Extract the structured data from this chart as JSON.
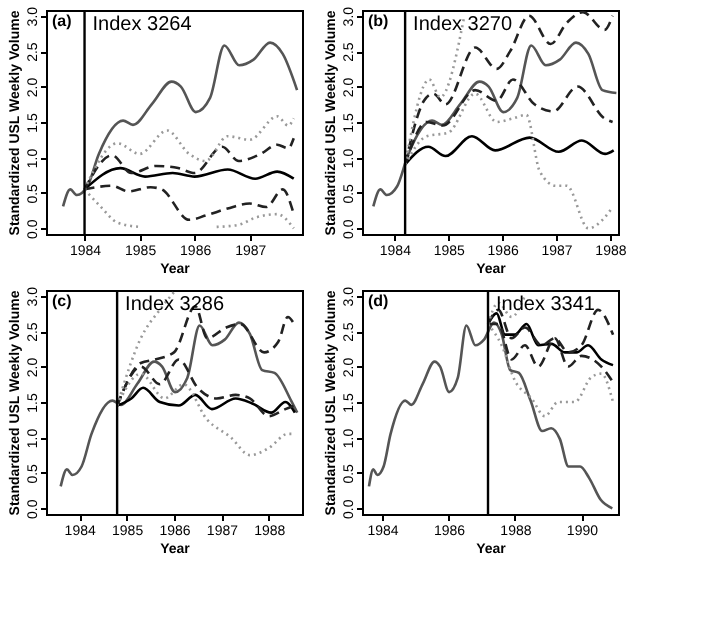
{
  "chart_data": [
    {
      "type": "line",
      "xlabel": "Year",
      "ylabel": "Standardized USL Weekly Volume",
      "annotations": [
        "(a)",
        "Index 3264"
      ],
      "xlim": [
        1983.3,
        1987.95
      ],
      "xticks": [
        1984,
        1985,
        1986,
        1987
      ],
      "ylim": [
        -0.08,
        3.08
      ],
      "yticks": [
        {
          "value": 0,
          "label": "0.0"
        },
        0.5,
        {
          "value": 1,
          "label": "1.0"
        },
        1.5,
        {
          "value": 2,
          "label": "2.0"
        },
        2.5,
        {
          "value": 3,
          "label": "3.0"
        }
      ],
      "grid": false,
      "marker": "none",
      "ref_lines": [
        {
          "axis": "x",
          "value": 1984.0
        }
      ],
      "series": [
        {
          "color": "#555555",
          "line_style": "solid",
          "x": [
            1983.61,
            1983.74,
            1983.86,
            1984.05,
            1984.26,
            1984.7,
            1984.88,
            1985.23,
            1985.58,
            1985.75,
            1986.02,
            1986.28,
            1986.54,
            1986.81,
            1987.07,
            1987.37,
            1987.6,
            1987.86
          ],
          "values": [
            0.31,
            0.55,
            0.47,
            0.59,
            1.05,
            1.52,
            1.46,
            1.76,
            2.07,
            2.0,
            1.64,
            1.84,
            2.58,
            2.3,
            2.38,
            2.62,
            2.46,
            1.95
          ]
        },
        {
          "color": "#000000",
          "line_style": "solid",
          "x": [
            1984.0,
            1984.65,
            1985.1,
            1985.6,
            1986.0,
            1986.6,
            1987.1,
            1987.5,
            1987.8
          ],
          "values": [
            0.55,
            0.85,
            0.73,
            0.78,
            0.73,
            0.83,
            0.7,
            0.8,
            0.7
          ]
        },
        {
          "color": "#222222",
          "line_style": "dashed",
          "x": [
            1984.0,
            1984.5,
            1984.85,
            1985.3,
            1985.7,
            1986.0,
            1986.5,
            1986.8,
            1987.2,
            1987.5,
            1987.7,
            1987.8
          ],
          "values": [
            0.55,
            1.03,
            0.78,
            0.88,
            0.85,
            0.78,
            1.15,
            0.95,
            1.05,
            1.18,
            1.13,
            1.27
          ]
        },
        {
          "color": "#222222",
          "line_style": "dashed",
          "x": [
            1984.0,
            1984.5,
            1984.8,
            1985.2,
            1985.4,
            1985.9,
            1986.2,
            1986.6,
            1987.0,
            1987.3,
            1987.6,
            1987.8
          ],
          "values": [
            0.55,
            0.6,
            0.52,
            0.58,
            0.55,
            0.12,
            0.18,
            0.28,
            0.35,
            0.3,
            0.55,
            0.2
          ]
        },
        {
          "color": "#999999",
          "line_style": "dotted",
          "x": [
            1984.0,
            1984.6,
            1985.0,
            1985.5,
            1985.9,
            1986.2,
            1986.6,
            1987.0,
            1987.5,
            1987.7,
            1987.8
          ],
          "values": [
            0.55,
            1.2,
            1.05,
            1.38,
            1.05,
            0.95,
            1.3,
            1.25,
            1.58,
            1.45,
            1.55
          ]
        },
        {
          "color": "#999999",
          "line_style": "dotted",
          "x": [
            1984.0,
            1984.3,
            1984.6,
            1985.0,
            1985.5,
            1986.4,
            1986.8,
            1987.1,
            1987.5,
            1987.8
          ],
          "values": [
            0.55,
            0.3,
            0.08,
            0.02,
            null,
            0.02,
            0.05,
            0.15,
            0.2,
            0.0
          ]
        }
      ]
    },
    {
      "type": "line",
      "xlabel": "Year",
      "ylabel": "Standardized USL Weekly Volume",
      "annotations": [
        "(b)",
        "Index 3270"
      ],
      "xlim": [
        1983.4,
        1988.15
      ],
      "xticks": [
        1984,
        1985,
        1986,
        1987,
        1988
      ],
      "ylim": [
        -0.08,
        3.08
      ],
      "yticks": [
        {
          "value": 0,
          "label": "0.0"
        },
        0.5,
        {
          "value": 1,
          "label": "1.0"
        },
        1.5,
        {
          "value": 2,
          "label": "2.0"
        },
        2.5,
        {
          "value": 3,
          "label": "3.0"
        }
      ],
      "grid": false,
      "marker": "none",
      "ref_lines": [
        {
          "axis": "x",
          "value": 1984.2
        }
      ],
      "series": [
        {
          "color": "#555555",
          "line_style": "solid",
          "x": [
            1983.61,
            1983.74,
            1983.86,
            1984.05,
            1984.26,
            1984.7,
            1984.88,
            1985.23,
            1985.58,
            1985.75,
            1986.02,
            1986.28,
            1986.54,
            1986.81,
            1987.07,
            1987.37,
            1987.6,
            1987.86,
            1988.12
          ],
          "values": [
            0.31,
            0.55,
            0.47,
            0.59,
            1.05,
            1.52,
            1.46,
            1.76,
            2.07,
            2.0,
            1.64,
            1.84,
            2.58,
            2.3,
            2.38,
            2.62,
            2.46,
            1.95,
            1.91
          ]
        },
        {
          "color": "#000000",
          "line_style": "solid",
          "x": [
            1984.2,
            1984.63,
            1984.95,
            1985.44,
            1985.87,
            1986.51,
            1987.05,
            1987.48,
            1987.91,
            1988.07
          ],
          "values": [
            0.9,
            1.15,
            1.02,
            1.3,
            1.1,
            1.28,
            1.08,
            1.24,
            1.05,
            1.1
          ]
        },
        {
          "color": "#222222",
          "line_style": "dashed",
          "x": [
            1984.2,
            1984.55,
            1984.72,
            1984.95,
            1985.5,
            1985.9,
            1986.15,
            1986.5,
            1986.9,
            1987.2,
            1987.5,
            1987.9,
            1988.05
          ],
          "values": [
            0.9,
            1.8,
            1.9,
            1.75,
            2.55,
            2.25,
            2.5,
            3.0,
            2.6,
            2.9,
            3.05,
            2.8,
            3.0
          ]
        },
        {
          "color": "#222222",
          "line_style": "dashed",
          "x": [
            1984.2,
            1984.6,
            1984.9,
            1985.5,
            1985.9,
            1986.2,
            1986.6,
            1986.95,
            1987.4,
            1987.9,
            1988.05
          ],
          "values": [
            0.9,
            1.5,
            1.45,
            1.95,
            1.8,
            2.1,
            1.75,
            1.65,
            2.0,
            1.55,
            1.5
          ]
        },
        {
          "color": "#999999",
          "line_style": "dotted",
          "x": [
            1984.2,
            1984.65,
            1984.85,
            1985.3
          ],
          "values": [
            0.9,
            2.1,
            1.85,
            3.0
          ]
        },
        {
          "color": "#999999",
          "line_style": "dotted",
          "x": [
            1984.2,
            1984.6,
            1985.0,
            1985.5,
            1985.9,
            1986.2,
            1986.45,
            1986.7,
            1987.0,
            1987.2,
            1987.6,
            1987.9,
            1988.05
          ],
          "values": [
            0.9,
            1.3,
            1.35,
            1.9,
            1.5,
            1.55,
            1.6,
            0.8,
            0.6,
            0.6,
            0.0,
            0.15,
            0.3
          ]
        }
      ]
    },
    {
      "type": "line",
      "xlabel": "Year",
      "ylabel": "Standardized USL Weekly Volume",
      "annotations": [
        "(c)",
        "Index 3286"
      ],
      "xlim": [
        1983.3,
        1988.7
      ],
      "xticks": [
        1984,
        1985,
        1986,
        1987,
        1988
      ],
      "ylim": [
        -0.08,
        3.08
      ],
      "yticks": [
        {
          "value": 0,
          "label": "0.0"
        },
        0.5,
        {
          "value": 1,
          "label": "1.0"
        },
        1.5,
        {
          "value": 2,
          "label": "2.0"
        },
        2.5,
        {
          "value": 3,
          "label": "3.0"
        }
      ],
      "grid": false,
      "marker": "none",
      "ref_lines": [
        {
          "axis": "x",
          "value": 1984.8
        }
      ],
      "series": [
        {
          "color": "#555555",
          "line_style": "solid",
          "x": [
            1983.61,
            1983.74,
            1983.86,
            1984.05,
            1984.26,
            1984.7,
            1984.88,
            1985.23,
            1985.58,
            1985.75,
            1986.02,
            1986.28,
            1986.54,
            1986.81,
            1987.07,
            1987.37,
            1987.6,
            1987.86,
            1988.12,
            1988.47,
            1988.6
          ],
          "values": [
            0.31,
            0.55,
            0.47,
            0.59,
            1.05,
            1.52,
            1.46,
            1.76,
            2.07,
            2.0,
            1.64,
            1.84,
            2.58,
            2.3,
            2.38,
            2.62,
            2.46,
            1.95,
            1.91,
            1.52,
            1.35
          ]
        },
        {
          "color": "#000000",
          "line_style": "solid",
          "x": [
            1984.8,
            1985.1,
            1985.35,
            1985.7,
            1986.1,
            1986.45,
            1986.8,
            1987.3,
            1987.65,
            1988.05,
            1988.35,
            1988.55
          ],
          "values": [
            1.45,
            1.55,
            1.7,
            1.5,
            1.45,
            1.6,
            1.4,
            1.55,
            1.48,
            1.35,
            1.5,
            1.35
          ]
        },
        {
          "color": "#222222",
          "line_style": "dashed",
          "x": [
            1984.8,
            1985.3,
            1985.6,
            1986.0,
            1986.45,
            1986.7,
            1987.1,
            1987.4,
            1987.9,
            1988.2,
            1988.4,
            1988.55
          ],
          "values": [
            1.45,
            2.05,
            2.1,
            2.2,
            2.85,
            2.4,
            2.55,
            2.6,
            2.2,
            2.35,
            2.7,
            2.58
          ]
        },
        {
          "color": "#222222",
          "line_style": "dashed",
          "x": [
            1984.8,
            1985.3,
            1985.7,
            1986.1,
            1986.5,
            1986.9,
            1987.3,
            1987.6,
            1988.0,
            1988.35,
            1988.55
          ],
          "values": [
            1.45,
            2.0,
            1.75,
            2.1,
            1.7,
            1.55,
            1.6,
            1.55,
            1.3,
            1.4,
            1.45
          ]
        },
        {
          "color": "#999999",
          "line_style": "dotted",
          "x": [
            1984.8,
            1985.3,
            1985.7,
            1986.0
          ],
          "values": [
            1.45,
            2.4,
            2.8,
            3.05
          ]
        },
        {
          "color": "#999999",
          "line_style": "dotted",
          "x": [
            1984.8,
            1985.3,
            1985.8,
            1986.2,
            1986.7,
            1987.2,
            1987.6,
            1988.0,
            1988.4,
            1988.55
          ],
          "values": [
            1.45,
            1.9,
            1.55,
            1.75,
            1.25,
            1.0,
            0.75,
            0.85,
            1.05,
            1.05
          ]
        }
      ]
    },
    {
      "type": "line",
      "xlabel": "Year",
      "ylabel": "Standardized USL Weekly Volume",
      "annotations": [
        "(d)",
        "Index 3341"
      ],
      "xlim": [
        1983.4,
        1991.1
      ],
      "xticks": [
        1984,
        1986,
        1988,
        1990
      ],
      "ylim": [
        -0.08,
        3.08
      ],
      "yticks": [
        {
          "value": 0,
          "label": "0.0"
        },
        0.5,
        {
          "value": 1,
          "label": "1.0"
        },
        1.5,
        {
          "value": 2,
          "label": "2.0"
        },
        2.5,
        {
          "value": 3,
          "label": "3.0"
        }
      ],
      "grid": false,
      "marker": "none",
      "ref_lines": [
        {
          "axis": "x",
          "value": 1987.19
        }
      ],
      "series": [
        {
          "color": "#555555",
          "line_style": "solid",
          "x": [
            1983.61,
            1983.74,
            1983.86,
            1984.05,
            1984.26,
            1984.7,
            1984.88,
            1985.23,
            1985.58,
            1985.75,
            1986.02,
            1986.28,
            1986.54,
            1986.81,
            1987.07,
            1987.37,
            1987.6,
            1987.86,
            1988.12,
            1988.47,
            1988.82,
            1989.09,
            1989.35,
            1989.61,
            1989.96,
            1990.23,
            1990.58,
            1990.93
          ],
          "values": [
            0.31,
            0.55,
            0.47,
            0.59,
            1.05,
            1.52,
            1.46,
            1.76,
            2.07,
            2.0,
            1.64,
            1.84,
            2.58,
            2.3,
            2.38,
            2.62,
            2.46,
            1.95,
            1.91,
            1.52,
            1.09,
            1.13,
            0.98,
            0.59,
            0.59,
            0.43,
            0.12,
            0.0
          ]
        },
        {
          "color": "#000000",
          "line_style": "solid",
          "x": [
            1987.19,
            1987.45,
            1987.7,
            1988.0,
            1988.35,
            1988.7,
            1989.1,
            1989.5,
            1989.85,
            1990.2,
            1990.6,
            1990.95
          ],
          "values": [
            2.6,
            2.75,
            2.45,
            2.45,
            2.6,
            2.3,
            2.32,
            2.2,
            2.2,
            2.3,
            2.1,
            2.02
          ]
        },
        {
          "color": "#222222",
          "line_style": "dashed",
          "x": [
            1987.19,
            1987.5,
            1987.9,
            1988.3,
            1988.8,
            1989.2,
            1989.6,
            1990.0,
            1990.5,
            1990.95
          ],
          "values": [
            2.6,
            2.8,
            2.4,
            2.55,
            2.3,
            2.4,
            2.2,
            2.3,
            2.8,
            2.45
          ]
        },
        {
          "color": "#222222",
          "line_style": "dashed",
          "x": [
            1987.19,
            1987.5,
            1987.9,
            1988.3,
            1988.7,
            1989.2,
            1989.6,
            1990.0,
            1990.6,
            1990.95
          ],
          "values": [
            2.6,
            2.6,
            2.1,
            2.3,
            2.0,
            2.4,
            2.0,
            2.15,
            2.0,
            1.78
          ]
        },
        {
          "color": "#999999",
          "line_style": "dotted",
          "x": [
            1987.19,
            1987.5,
            1987.9,
            1988.3
          ],
          "values": [
            2.6,
            2.9,
            2.7,
            3.0
          ]
        },
        {
          "color": "#999999",
          "line_style": "dotted",
          "x": [
            1987.19,
            1987.6,
            1988.0,
            1988.5,
            1988.9,
            1989.3,
            1989.8,
            1990.3,
            1990.6,
            1990.95
          ],
          "values": [
            2.6,
            2.3,
            1.8,
            1.55,
            1.3,
            1.5,
            1.5,
            1.85,
            1.9,
            1.5
          ]
        }
      ]
    }
  ]
}
